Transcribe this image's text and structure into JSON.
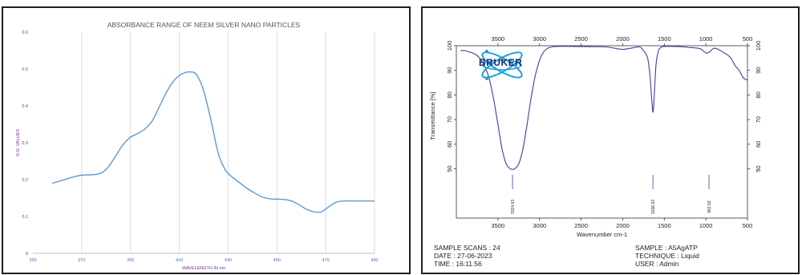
{
  "colors": {
    "left_line": "#5b9bd5",
    "left_axis_text": "#4472c4",
    "left_ylabel": "#7030a0",
    "right_line": "#4b3a9c",
    "bruker_blue": "#1c9fe0",
    "bruker_text": "#1c2f6e"
  },
  "chart_data": [
    {
      "type": "line",
      "title": "ABSORBANCE RANGE OF NEEM SILVER NANO PARTICLES",
      "xlabel": "WAVELENGTH IN nm",
      "ylabel": "O.D. VALUES",
      "xlim": [
        350,
        490
      ],
      "ylim": [
        0,
        0.6
      ],
      "x_ticks": [
        350,
        370,
        390,
        410,
        430,
        450,
        470,
        490
      ],
      "y_ticks": [
        0,
        0.1,
        0.2,
        0.3,
        0.4,
        0.5,
        0.6
      ],
      "y_tick_labels": [
        "0",
        "0.1",
        "0.2",
        "0.3",
        "0.4",
        "0.5",
        "0.6"
      ],
      "grid": "vertical",
      "series": [
        {
          "x": [
            358,
            362,
            366,
            370,
            374,
            378,
            381,
            384,
            387,
            390,
            393,
            396,
            399,
            402,
            405,
            408,
            411,
            414,
            417,
            420,
            423,
            426,
            429,
            432,
            435,
            438,
            441,
            444,
            447,
            450,
            453,
            456,
            459,
            462,
            465,
            468,
            471,
            474,
            477,
            480,
            484,
            490
          ],
          "y": [
            0.19,
            0.198,
            0.206,
            0.212,
            0.213,
            0.218,
            0.235,
            0.265,
            0.295,
            0.315,
            0.325,
            0.338,
            0.36,
            0.4,
            0.44,
            0.47,
            0.486,
            0.492,
            0.485,
            0.44,
            0.36,
            0.27,
            0.225,
            0.205,
            0.19,
            0.175,
            0.163,
            0.153,
            0.148,
            0.147,
            0.146,
            0.142,
            0.132,
            0.12,
            0.113,
            0.112,
            0.125,
            0.138,
            0.142,
            0.142,
            0.142,
            0.142
          ]
        }
      ]
    },
    {
      "type": "line",
      "title": "",
      "xlabel": "Wavenumber cm-1",
      "ylabel": "Transmittance [%]",
      "x_reversed": true,
      "xlim": [
        4000,
        500
      ],
      "ylim": [
        30,
        100
      ],
      "x_ticks": [
        3500,
        3000,
        2500,
        2000,
        1500,
        1000,
        500
      ],
      "y_ticks": [
        50,
        60,
        70,
        80,
        90,
        100
      ],
      "grid": "none",
      "logo": "BRUKER",
      "peak_labels": [
        {
          "wavenumber": 3324.63,
          "label": "3324.63"
        },
        {
          "wavenumber": 1636.63,
          "label": "1636.63"
        },
        {
          "wavenumber": 962.62,
          "label": "962.62"
        }
      ],
      "series": [
        {
          "x": [
            3950,
            3900,
            3850,
            3800,
            3750,
            3700,
            3650,
            3600,
            3550,
            3500,
            3450,
            3400,
            3350,
            3324,
            3300,
            3250,
            3200,
            3150,
            3100,
            3050,
            3000,
            2950,
            2900,
            2850,
            2800,
            2600,
            2400,
            2200,
            2100,
            2000,
            1900,
            1800,
            1750,
            1700,
            1670,
            1650,
            1636,
            1620,
            1600,
            1570,
            1530,
            1500,
            1400,
            1300,
            1200,
            1100,
            1050,
            1020,
            990,
            962,
            940,
            900,
            850,
            800,
            750,
            700,
            650,
            600,
            550,
            500
          ],
          "y": [
            98,
            98,
            97.5,
            97,
            96,
            94,
            91,
            86,
            78,
            68,
            58,
            52,
            50,
            49.8,
            50,
            52,
            58,
            68,
            79,
            88,
            94,
            97.5,
            99,
            99.5,
            99.7,
            99.7,
            99.6,
            99.5,
            99,
            98.5,
            99,
            99.5,
            98,
            95,
            87,
            78,
            73,
            80,
            92,
            98,
            99.5,
            99.7,
            99.7,
            99.6,
            99.3,
            99,
            98.5,
            97.5,
            97,
            97.3,
            98,
            99,
            98.5,
            97.5,
            96.5,
            95,
            92,
            90,
            87,
            86
          ]
        }
      ]
    }
  ],
  "right_footer": {
    "left": [
      "SAMPLE SCANS : 24",
      "DATE : 27-06-2023",
      "TIME : 16:11:56"
    ],
    "right": [
      "SAMPLE : A5AgATP",
      "TECHNIQUE : Liquid",
      "USER : Admin"
    ]
  }
}
